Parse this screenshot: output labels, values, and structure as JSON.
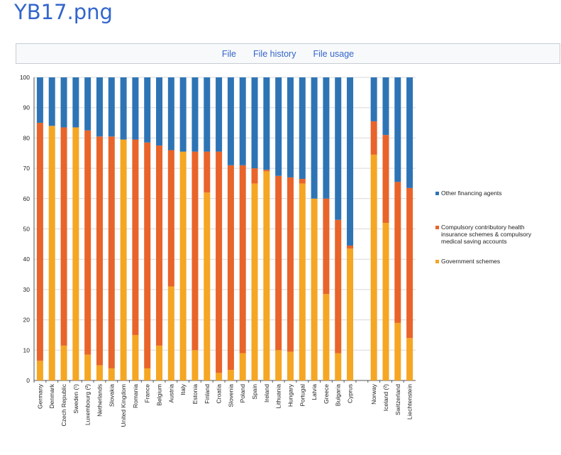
{
  "page": {
    "title": "YB17.png"
  },
  "tabs": [
    {
      "label": "File"
    },
    {
      "label": "File history"
    },
    {
      "label": "File usage"
    }
  ],
  "colors": {
    "government": "#f5a623",
    "compulsory": "#e8642a",
    "other": "#2e74b5",
    "grid": "#d9d9d9",
    "axis": "#555555"
  },
  "chart_data": {
    "type": "bar",
    "stacked": true,
    "ylim": [
      0,
      100
    ],
    "yticks": [
      0,
      10,
      20,
      30,
      40,
      50,
      60,
      70,
      80,
      90,
      100
    ],
    "grid": true,
    "legend_position": "right",
    "categories": [
      "Germany",
      "Denmark",
      "Czech Republic",
      "Sweden (¹)",
      "Luxembourg (²)",
      "Netherlands",
      "Slovakia",
      "United Kingdom",
      "Romania",
      "France",
      "Belgium",
      "Austria",
      "Italy",
      "Estonia",
      "Finland",
      "Croatia",
      "Slovenia",
      "Poland",
      "Spain",
      "Ireland",
      "Lithuania",
      "Hungary",
      "Portugal",
      "Latvia",
      "Greece",
      "Bulgaria",
      "Cyprus",
      "",
      "Norway",
      "Iceland (²)",
      "Switzerland",
      "Liechtenstein"
    ],
    "series": [
      {
        "name": "Government schemes",
        "color": "#f5a623",
        "values": [
          6.5,
          84.0,
          11.5,
          83.5,
          8.5,
          5.0,
          4.0,
          79.5,
          15.0,
          4.0,
          11.5,
          31.0,
          75.5,
          10.0,
          62.0,
          2.5,
          3.5,
          9.0,
          65.0,
          69.0,
          10.0,
          9.5,
          65.0,
          60.0,
          28.5,
          9.0,
          43.5,
          null,
          74.5,
          52.0,
          19.0,
          14.0
        ]
      },
      {
        "name": "Compulsory contributory health insurance schemes & compulsory medical saving accounts",
        "color": "#e8642a",
        "values": [
          78.5,
          0,
          72.0,
          0,
          74.0,
          75.5,
          76.5,
          0,
          64.5,
          74.5,
          66.0,
          45.0,
          0,
          65.5,
          13.5,
          73.0,
          67.5,
          62.0,
          5.0,
          0.5,
          57.5,
          57.5,
          1.5,
          0,
          31.5,
          44.0,
          1.0,
          null,
          11.0,
          29.0,
          46.5,
          49.5
        ]
      },
      {
        "name": "Other financing agents",
        "color": "#2e74b5",
        "values": [
          15.0,
          16.0,
          16.5,
          16.5,
          17.5,
          19.5,
          19.5,
          20.5,
          20.5,
          21.5,
          22.5,
          24.0,
          24.5,
          24.5,
          24.5,
          24.5,
          29.0,
          29.0,
          30.0,
          30.5,
          32.5,
          33.0,
          33.5,
          40.0,
          40.0,
          47.0,
          55.5,
          null,
          14.5,
          19.0,
          34.5,
          36.5
        ]
      }
    ],
    "legend": [
      {
        "label": "Other financing agents",
        "color": "#2e74b5"
      },
      {
        "label": "Compulsory contributory health insurance schemes & compulsory medical saving accounts",
        "color": "#e8642a"
      },
      {
        "label": "Government schemes",
        "color": "#f5a623"
      }
    ],
    "title": "",
    "xlabel": "",
    "ylabel": ""
  }
}
